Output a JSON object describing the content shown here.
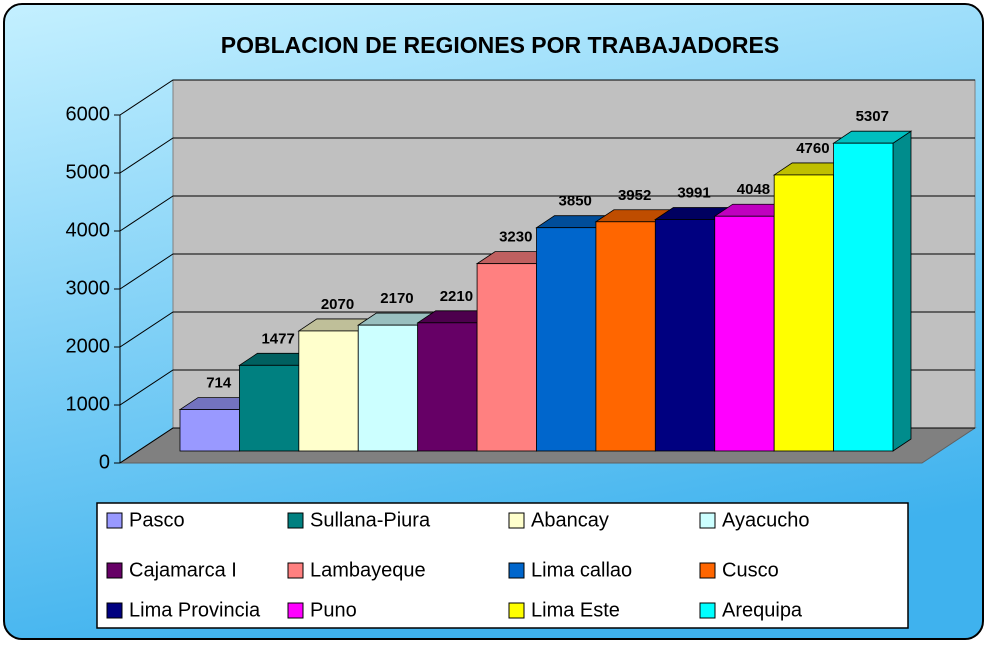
{
  "chart_data": {
    "type": "bar3d",
    "title": "POBLACION DE REGIONES POR TRABAJADORES",
    "categories": [
      "Pasco",
      "Sullana-Piura",
      "Abancay",
      "Ayacucho",
      "Cajamarca I",
      "Lambayeque",
      "Lima callao",
      "Cusco",
      "Lima Provincia",
      "Puno",
      "Lima Este",
      "Arequipa"
    ],
    "values": [
      714,
      1477,
      2070,
      2170,
      2210,
      3230,
      3850,
      3952,
      3991,
      4048,
      4760,
      5307
    ],
    "colors": [
      "#9999ff",
      "#008080",
      "#ffffcc",
      "#ccffff",
      "#660066",
      "#ff8080",
      "#0066cc",
      "#ff6600",
      "#000080",
      "#ff00ff",
      "#ffff00",
      "#00ffff"
    ],
    "ylim": [
      0,
      6000
    ],
    "yticks": [
      0,
      1000,
      2000,
      3000,
      4000,
      5000,
      6000
    ],
    "grid": true,
    "legend": "bottom"
  }
}
